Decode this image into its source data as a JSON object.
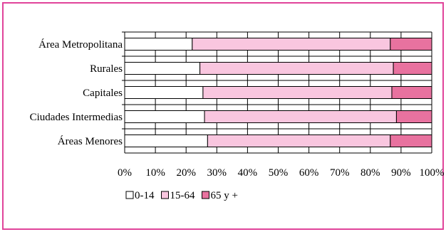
{
  "chart_data": {
    "type": "bar",
    "orientation": "horizontal",
    "stacked": "percent",
    "categories": [
      "Área Metropolitana",
      "Rurales",
      "Capitales",
      "Ciudades Intermedias",
      "Áreas Menores"
    ],
    "series": [
      {
        "name": "0-14",
        "color": "#ffffff",
        "values": [
          22,
          24.5,
          25.5,
          26,
          27
        ]
      },
      {
        "name": "15-64",
        "color": "#f9c6df",
        "values": [
          64.5,
          63,
          61.5,
          62.5,
          59.5
        ]
      },
      {
        "name": "65 y +",
        "color": "#e8729f",
        "values": [
          13.5,
          12.5,
          13,
          11.5,
          13.5
        ]
      }
    ],
    "x_ticks": [
      "0%",
      "10%",
      "20%",
      "30%",
      "40%",
      "50%",
      "60%",
      "70%",
      "80%",
      "90%",
      "100%"
    ],
    "xlim": [
      0,
      100
    ],
    "grid": true,
    "legend_position": "bottom-left",
    "frame_color": "#e0449a"
  }
}
